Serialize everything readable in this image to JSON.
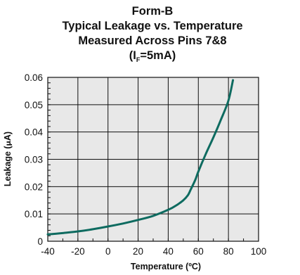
{
  "chart_data": {
    "type": "line",
    "title_lines": [
      "Form-B",
      "Typical Leakage vs. Temperature",
      "Measured Across Pins 7&8"
    ],
    "condition": {
      "open": "(I",
      "subscript": "F",
      "close": "=5mA)"
    },
    "xlabel": "Temperature (ºC)",
    "ylabel_prefix": "Leakage (",
    "ylabel_symbol": "μ",
    "ylabel_suffix": "A)",
    "xlim": [
      -40,
      100
    ],
    "ylim": [
      0,
      0.06
    ],
    "x_ticks": [
      "-40",
      "-20",
      "0",
      "20",
      "40",
      "60",
      "80",
      "100"
    ],
    "y_ticks": [
      "0",
      "0.01",
      "0.02",
      "0.03",
      "0.04",
      "0.05",
      "0.06"
    ],
    "grid": true,
    "plot_background": "#e8e8e8",
    "line_color": "#0e6b60",
    "series": [
      {
        "x": [
          -40,
          -30,
          -20,
          -10,
          0,
          10,
          20,
          30,
          40,
          45,
          50,
          53,
          55,
          58,
          60,
          65,
          70,
          75,
          80,
          83
        ],
        "y": [
          0.0025,
          0.003,
          0.0036,
          0.0044,
          0.0054,
          0.0065,
          0.0078,
          0.0093,
          0.0115,
          0.013,
          0.015,
          0.0168,
          0.019,
          0.0225,
          0.0255,
          0.032,
          0.038,
          0.0445,
          0.0515,
          0.059
        ]
      }
    ]
  }
}
